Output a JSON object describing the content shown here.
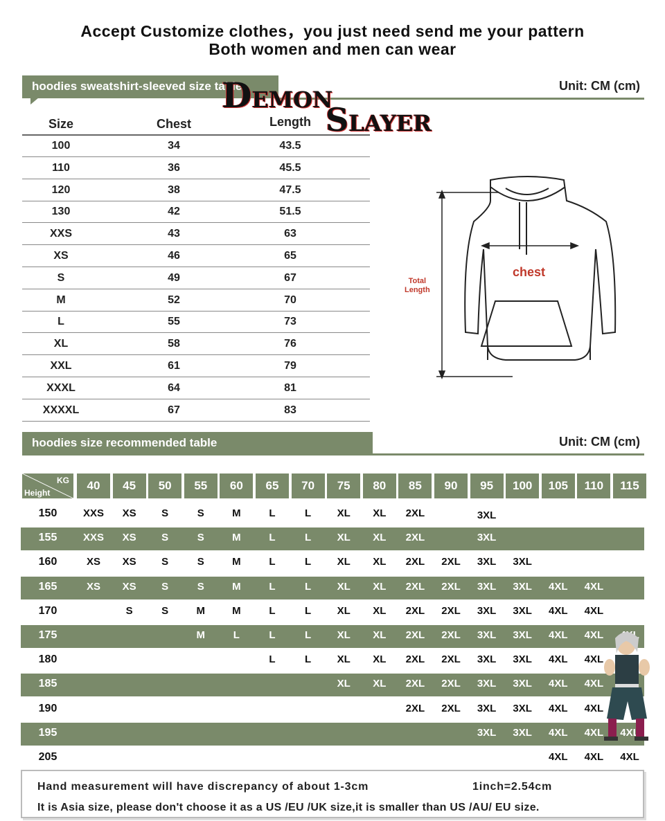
{
  "header": {
    "line1": "Accept Customize clothes，you just need send me your pattern",
    "line2": "Both women and men can wear"
  },
  "logo": {
    "word1_initial": "D",
    "word1_rest": "EMON",
    "word2_initial": "S",
    "word2_rest": "LAYER"
  },
  "size_table": {
    "banner": "hoodies sweatshirt-sleeved size table",
    "unit": "Unit: CM (cm)",
    "columns": [
      "Size",
      "Chest",
      "Length"
    ],
    "rows": [
      [
        "100",
        "34",
        "43.5"
      ],
      [
        "110",
        "36",
        "45.5"
      ],
      [
        "120",
        "38",
        "47.5"
      ],
      [
        "130",
        "42",
        "51.5"
      ],
      [
        "XXS",
        "43",
        "63"
      ],
      [
        "XS",
        "46",
        "65"
      ],
      [
        "S",
        "49",
        "67"
      ],
      [
        "M",
        "52",
        "70"
      ],
      [
        "L",
        "55",
        "73"
      ],
      [
        "XL",
        "58",
        "76"
      ],
      [
        "XXL",
        "61",
        "79"
      ],
      [
        "XXXL",
        "64",
        "81"
      ],
      [
        "XXXXL",
        "67",
        "83"
      ]
    ]
  },
  "diagram": {
    "chest_label": "chest",
    "length_label_1": "Total",
    "length_label_2": "Length",
    "accent_color": "#c0392b"
  },
  "recommend_table": {
    "banner": "hoodies size recommended table",
    "unit": "Unit: CM (cm)",
    "corner_top": "KG",
    "corner_bottom": "Height",
    "weights": [
      "40",
      "45",
      "50",
      "55",
      "60",
      "65",
      "70",
      "75",
      "80",
      "85",
      "90",
      "95",
      "100",
      "105",
      "110",
      "115"
    ],
    "rows": [
      {
        "height": "150",
        "sizes": [
          "XXS",
          "XS",
          "S",
          "S",
          "M",
          "L",
          "L",
          "XL",
          "XL",
          "2XL",
          "",
          "3XL",
          "",
          "",
          "",
          ""
        ]
      },
      {
        "height": "155",
        "sizes": [
          "XXS",
          "XS",
          "S",
          "S",
          "M",
          "L",
          "L",
          "XL",
          "XL",
          "2XL",
          "",
          "3XL",
          "",
          "",
          "",
          ""
        ]
      },
      {
        "height": "160",
        "sizes": [
          "XS",
          "XS",
          "S",
          "S",
          "M",
          "L",
          "L",
          "XL",
          "XL",
          "2XL",
          "2XL",
          "3XL",
          "3XL",
          "",
          "",
          ""
        ]
      },
      {
        "height": "165",
        "sizes": [
          "XS",
          "XS",
          "S",
          "S",
          "M",
          "L",
          "L",
          "XL",
          "XL",
          "2XL",
          "2XL",
          "3XL",
          "3XL",
          "4XL",
          "4XL",
          ""
        ]
      },
      {
        "height": "170",
        "sizes": [
          "",
          "S",
          "S",
          "M",
          "M",
          "L",
          "L",
          "XL",
          "XL",
          "2XL",
          "2XL",
          "3XL",
          "3XL",
          "4XL",
          "4XL",
          ""
        ]
      },
      {
        "height": "175",
        "sizes": [
          "",
          "",
          "",
          "M",
          "L",
          "L",
          "L",
          "XL",
          "XL",
          "2XL",
          "2XL",
          "3XL",
          "3XL",
          "4XL",
          "4XL",
          "4XL"
        ]
      },
      {
        "height": "180",
        "sizes": [
          "",
          "",
          "",
          "",
          "",
          "L",
          "L",
          "XL",
          "XL",
          "2XL",
          "2XL",
          "3XL",
          "3XL",
          "4XL",
          "4XL",
          ""
        ]
      },
      {
        "height": "185",
        "sizes": [
          "",
          "",
          "",
          "",
          "",
          "",
          "",
          "XL",
          "XL",
          "2XL",
          "2XL",
          "3XL",
          "3XL",
          "4XL",
          "4XL",
          ""
        ]
      },
      {
        "height": "190",
        "sizes": [
          "",
          "",
          "",
          "",
          "",
          "",
          "",
          "",
          "",
          "2XL",
          "2XL",
          "3XL",
          "3XL",
          "4XL",
          "4XL",
          ""
        ]
      },
      {
        "height": "195",
        "sizes": [
          "",
          "",
          "",
          "",
          "",
          "",
          "",
          "",
          "",
          "",
          "",
          "3XL",
          "3XL",
          "4XL",
          "4XL",
          "4XL"
        ]
      },
      {
        "height": "205",
        "sizes": [
          "",
          "",
          "",
          "",
          "",
          "",
          "",
          "",
          "",
          "",
          "",
          "",
          "",
          "4XL",
          "4XL",
          "4XL"
        ]
      }
    ]
  },
  "notes": {
    "line1a": "Hand measurement will have discrepancy of about 1-3cm",
    "line1b": "1inch=2.54cm",
    "line2": "It is Asia size, please don't choose it as a US /EU /UK size,it is smaller than US /AU/ EU size."
  },
  "colors": {
    "banner_green": "#7a8a6a"
  }
}
